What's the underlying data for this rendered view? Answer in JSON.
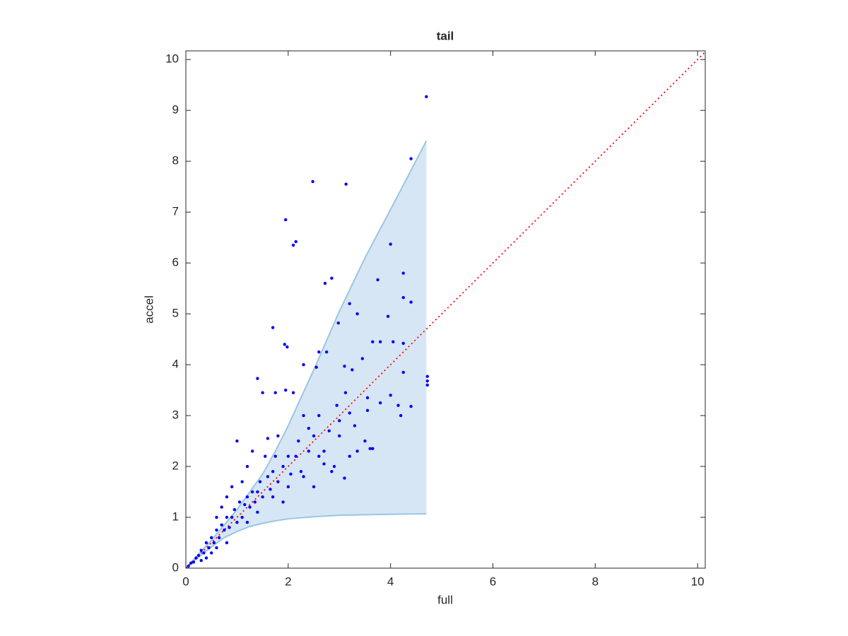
{
  "chart_data": {
    "type": "scatter",
    "title": "tail",
    "xlabel": "full",
    "ylabel": "accel",
    "xlim": [
      0,
      10.15
    ],
    "ylim": [
      0,
      10.17
    ],
    "xticks": [
      0,
      2,
      4,
      6,
      8,
      10
    ],
    "yticks": [
      0,
      1,
      2,
      3,
      4,
      5,
      6,
      7,
      8,
      9,
      10
    ],
    "grid": false,
    "band": {
      "fill": "#d6e6f4",
      "edge": "#9ac6e3",
      "x": [
        0,
        0.25,
        0.5,
        0.75,
        1,
        1.25,
        1.5,
        1.75,
        2,
        2.5,
        3,
        3.5,
        4,
        4.7
      ],
      "upper": [
        0,
        0.28,
        0.55,
        0.85,
        1.15,
        1.5,
        1.85,
        2.3,
        2.8,
        3.9,
        5.05,
        6.1,
        7.05,
        8.4
      ],
      "lower": [
        0,
        0.22,
        0.42,
        0.6,
        0.72,
        0.82,
        0.88,
        0.93,
        0.97,
        1.01,
        1.04,
        1.05,
        1.06,
        1.07
      ]
    },
    "reference_line": {
      "color": "#ff0000",
      "x": [
        0,
        10.15
      ],
      "y": [
        0,
        10.15
      ]
    },
    "series": [
      {
        "color": "#0000ff",
        "x": [
          4.7,
          4.4,
          2.48,
          3.13,
          1.95,
          2.1,
          2.15,
          4.0,
          2.85,
          2.72,
          3.75,
          4.25,
          3.2,
          4.25,
          4.4,
          3.35,
          3.95,
          1.7,
          2.98,
          1.93,
          1.98,
          4.25,
          3.65,
          3.8,
          4.05,
          2.6,
          2.75,
          3.45,
          2.3,
          2.55,
          3.1,
          3.25,
          4.72,
          4.72,
          4.72,
          4.25,
          1.4,
          1.5,
          1.75,
          1.95,
          2.1,
          3.12,
          3.55,
          4.0,
          3.8,
          3.55,
          4.4,
          4.2,
          4.15,
          3.2,
          2.95,
          3.0,
          3.5,
          3.6,
          3.65,
          3.35,
          3.1,
          3.2,
          2.9,
          2.7,
          2.8,
          2.5,
          2.4,
          2.2,
          2.15,
          2.0,
          2.05,
          1.9,
          1.8,
          1.7,
          1.65,
          1.6,
          1.5,
          1.45,
          1.4,
          1.35,
          1.3,
          1.25,
          1.2,
          1.15,
          1.1,
          1.05,
          1.0,
          0.95,
          0.9,
          0.85,
          0.8,
          0.75,
          0.7,
          0.65,
          0.6,
          0.55,
          0.5,
          0.45,
          0.4,
          0.35,
          0.3,
          0.25,
          0.2,
          0.15,
          0.1,
          0.05,
          1.0,
          1.2,
          1.3,
          1.6,
          1.8,
          2.3,
          2.6,
          1.55,
          1.75,
          2.25,
          2.4,
          2.6,
          0.9,
          0.8,
          1.1,
          0.7,
          0.6,
          1.2,
          0.8,
          0.5,
          1.4,
          1.7,
          2.0,
          1.9,
          2.3,
          2.5,
          2.7,
          3.0,
          3.3,
          2.85,
          0.3,
          0.6,
          0.4
        ],
        "values": [
          9.27,
          8.05,
          7.6,
          7.55,
          6.85,
          6.35,
          6.42,
          6.37,
          5.7,
          5.6,
          5.67,
          5.8,
          5.2,
          5.32,
          5.23,
          5.0,
          4.95,
          4.73,
          4.82,
          4.4,
          4.35,
          4.42,
          4.45,
          4.45,
          4.45,
          4.25,
          4.25,
          4.12,
          4.0,
          3.95,
          3.97,
          3.9,
          3.77,
          3.68,
          3.6,
          3.85,
          3.73,
          3.45,
          3.45,
          3.5,
          3.45,
          3.45,
          3.35,
          3.4,
          3.25,
          3.1,
          3.18,
          3.0,
          3.2,
          3.05,
          3.2,
          2.9,
          2.5,
          2.35,
          2.35,
          2.3,
          1.77,
          2.2,
          2.0,
          2.05,
          2.7,
          2.6,
          2.75,
          2.5,
          2.2,
          2.2,
          1.85,
          2.0,
          1.7,
          1.9,
          1.55,
          1.8,
          1.4,
          1.7,
          1.5,
          1.3,
          1.5,
          1.2,
          1.4,
          1.25,
          1.0,
          1.3,
          0.9,
          1.15,
          1.0,
          0.8,
          1.0,
          0.75,
          0.85,
          0.6,
          0.75,
          0.5,
          0.6,
          0.4,
          0.5,
          0.3,
          0.35,
          0.25,
          0.2,
          0.12,
          0.1,
          0.04,
          2.5,
          2.0,
          2.3,
          2.55,
          2.6,
          3.0,
          3.0,
          2.2,
          2.2,
          1.9,
          2.3,
          2.2,
          1.6,
          1.4,
          1.7,
          1.2,
          1.0,
          0.9,
          0.5,
          0.3,
          1.1,
          1.4,
          1.6,
          1.3,
          1.8,
          1.6,
          2.3,
          2.6,
          2.8,
          1.9,
          0.15,
          0.4,
          0.2
        ]
      }
    ]
  }
}
